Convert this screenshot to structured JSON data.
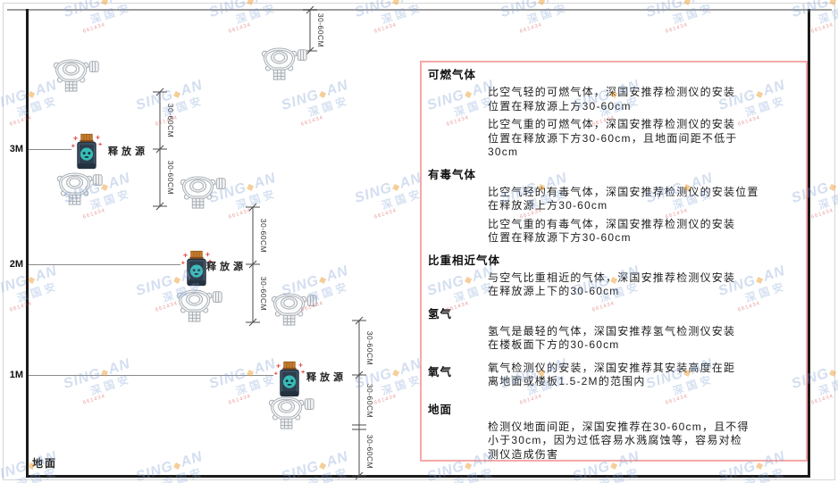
{
  "diagram": {
    "height_labels": [
      "3M",
      "2M",
      "1M"
    ],
    "ground_label": "地面",
    "release_source_label": "释放源",
    "dim_label": "30-60CM",
    "icon_names": {
      "detector": "gas-detector-icon",
      "source": "release-source-icon"
    }
  },
  "panel": {
    "sections": [
      {
        "heading": "可燃气体",
        "paragraphs": [
          [
            "比空气轻的可燃气体，深国安推荐检测仪的安装",
            "位置在释放源上方30-60cm"
          ],
          [
            "比空气重的可燃气体，深国安推荐检测仪的安装",
            "位置在释放源下方30-60cm，且地面间距不低于",
            "30cm"
          ]
        ]
      },
      {
        "heading": "有毒气体",
        "paragraphs": [
          [
            "比空气轻的有毒气体，深国安推荐检测仪的安装位置",
            "在释放源上方30-60cm"
          ],
          [
            "比空气重的有毒气体，深国安推荐检测仪的安装",
            "位置在释放源下方30-60cm"
          ]
        ]
      },
      {
        "heading": "比重相近气体",
        "paragraphs": [
          [
            "与空气比重相近的气体，深国安推荐检测仪安装",
            "在释放源上下的30-60cm"
          ]
        ]
      },
      {
        "heading": "氢气",
        "paragraphs": [
          [
            "氢气是最轻的气体，深国安推荐氢气检测仪安装",
            "在楼板面下方的30-60cm"
          ]
        ]
      },
      {
        "heading": "氧气",
        "inline": true,
        "paragraphs": [
          [
            "氧气检测仪的安装，深国安推荐其安装高度在距",
            "离地面或楼板1.5-2M的范围内"
          ]
        ]
      },
      {
        "heading": "地面",
        "gap": true,
        "paragraphs": [
          [
            "检测仪地面间距，深国安推荐在30-60cm，且不得",
            "小于30cm，因为过低容易水溅腐蚀等，容易对检",
            "测仪造成伤害"
          ]
        ]
      }
    ]
  },
  "watermark": {
    "logo_left": "SING",
    "logo_diamond": "◆",
    "logo_right": "AN",
    "cn": "深国安",
    "red": "661434"
  }
}
